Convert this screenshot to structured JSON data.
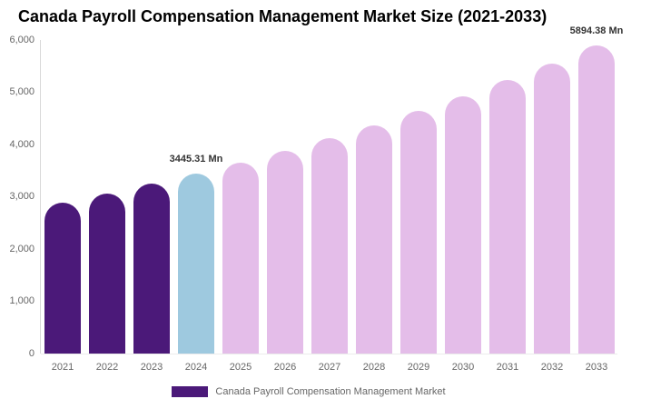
{
  "chart_data": {
    "type": "bar",
    "title": "Canada Payroll Compensation Management Market Size (2021-2033)",
    "unit": "Mn",
    "categories": [
      "2021",
      "2022",
      "2023",
      "2024",
      "2025",
      "2026",
      "2027",
      "2028",
      "2029",
      "2030",
      "2031",
      "2032",
      "2033"
    ],
    "values": [
      2880,
      3058,
      3246,
      3445.31,
      3657,
      3882,
      4121,
      4374,
      4643,
      4929,
      5232,
      5554,
      5894.38
    ],
    "bar_colors": [
      "#4B1979",
      "#4B1979",
      "#4B1979",
      "#9EC9DF",
      "#E4BDE9",
      "#E4BDE9",
      "#E4BDE9",
      "#E4BDE9",
      "#E4BDE9",
      "#E4BDE9",
      "#E4BDE9",
      "#E4BDE9",
      "#E4BDE9"
    ],
    "data_labels": [
      {
        "category": "2024",
        "text": "3445.31 Mn"
      },
      {
        "category": "2033",
        "text": "5894.38 Mn"
      }
    ],
    "ylim": [
      0,
      6000
    ],
    "ytick_values": [
      0,
      1000,
      2000,
      3000,
      4000,
      5000,
      6000
    ],
    "ytick_labels": [
      "0",
      "1,000",
      "2,000",
      "3,000",
      "4,000",
      "5,000",
      "6,000"
    ],
    "xlabel": "",
    "ylabel": "",
    "grid": false,
    "legend": {
      "label": "Canada Payroll Compensation Management Market",
      "position": "bottom",
      "swatch_color": "#4B1979"
    },
    "colors": {
      "historical_bars": "#4B1979",
      "current_year_bar": "#9EC9DF",
      "forecast_bars": "#E4BDE9",
      "title_text": "#000000",
      "axis_text": "#666666",
      "data_label_text": "#333333",
      "axis_line": "#D9D9D9"
    }
  }
}
